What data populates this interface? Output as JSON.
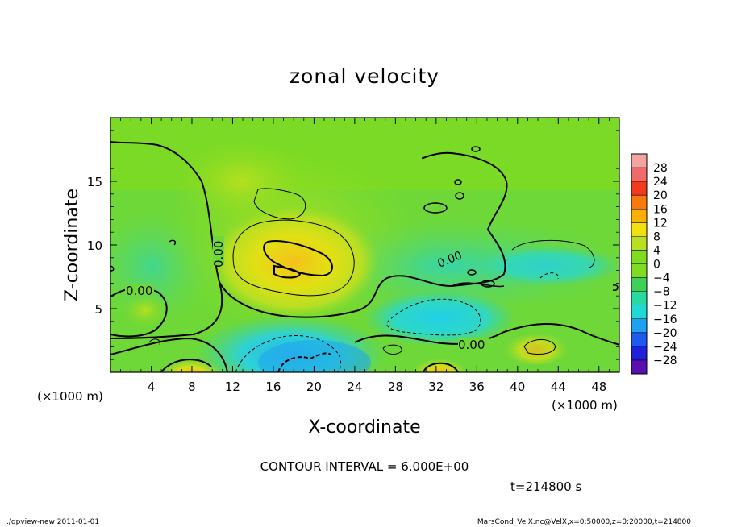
{
  "chart_data": {
    "type": "heatmap",
    "title": "zonal velocity",
    "xlabel": "X-coordinate",
    "ylabel": "Z-coordinate",
    "x_unit_label": "(×1000 m)",
    "y_unit_label": "(×1000 m)",
    "xlim": [
      0,
      50
    ],
    "ylim": [
      0,
      20
    ],
    "x_ticks": [
      4,
      8,
      12,
      16,
      20,
      24,
      28,
      32,
      36,
      40,
      44,
      48
    ],
    "x_tick_labels": [
      "4",
      "8",
      "12",
      "16",
      "20",
      "24",
      "28",
      "32",
      "36",
      "40",
      "44",
      "48"
    ],
    "y_ticks": [
      5,
      10,
      15
    ],
    "y_tick_labels": [
      "5",
      "10",
      "15"
    ],
    "colorbar": {
      "levels": [
        28,
        24,
        20,
        16,
        12,
        8,
        4,
        0,
        -4,
        -8,
        -12,
        -16,
        -20,
        -24,
        -28
      ],
      "labels": [
        "28",
        "24",
        "20",
        "16",
        "12",
        "8",
        "4",
        "0",
        "−4",
        "−8",
        "−12",
        "−16",
        "−20",
        "−24",
        "−28"
      ],
      "colors": [
        "#f4a3a3",
        "#f06a6a",
        "#f23a1e",
        "#f77a10",
        "#f9b000",
        "#f2e010",
        "#b6e020",
        "#7fdc20",
        "#3fd05a",
        "#2ad8a0",
        "#20d8d8",
        "#20a0f0",
        "#1f5af0",
        "#2020d8",
        "#5a10b0"
      ]
    },
    "contour_interval": "CONTOUR INTERVAL = 6.000E+00",
    "contour_labels": [
      "0.00",
      "0.00",
      "0.00",
      "0.00"
    ],
    "time_label": "t=214800 s",
    "features": [
      {
        "kind": "positive-max",
        "x": 18,
        "z": 8.8,
        "value": 12
      },
      {
        "kind": "positive-max",
        "x": 8,
        "z": 0.5,
        "value": 12
      },
      {
        "kind": "positive-max",
        "x": 32,
        "z": 0.5,
        "value": 12
      },
      {
        "kind": "negative-min",
        "x": 19,
        "z": 1.5,
        "value": -12
      },
      {
        "kind": "negative-min",
        "x": 34,
        "z": 5,
        "value": -10
      }
    ]
  },
  "footer": {
    "left": "./gpview-new  2011-01-01",
    "right": "MarsCond_VelX.nc@VelX,x=0:50000,z=0:20000,t=214800"
  }
}
